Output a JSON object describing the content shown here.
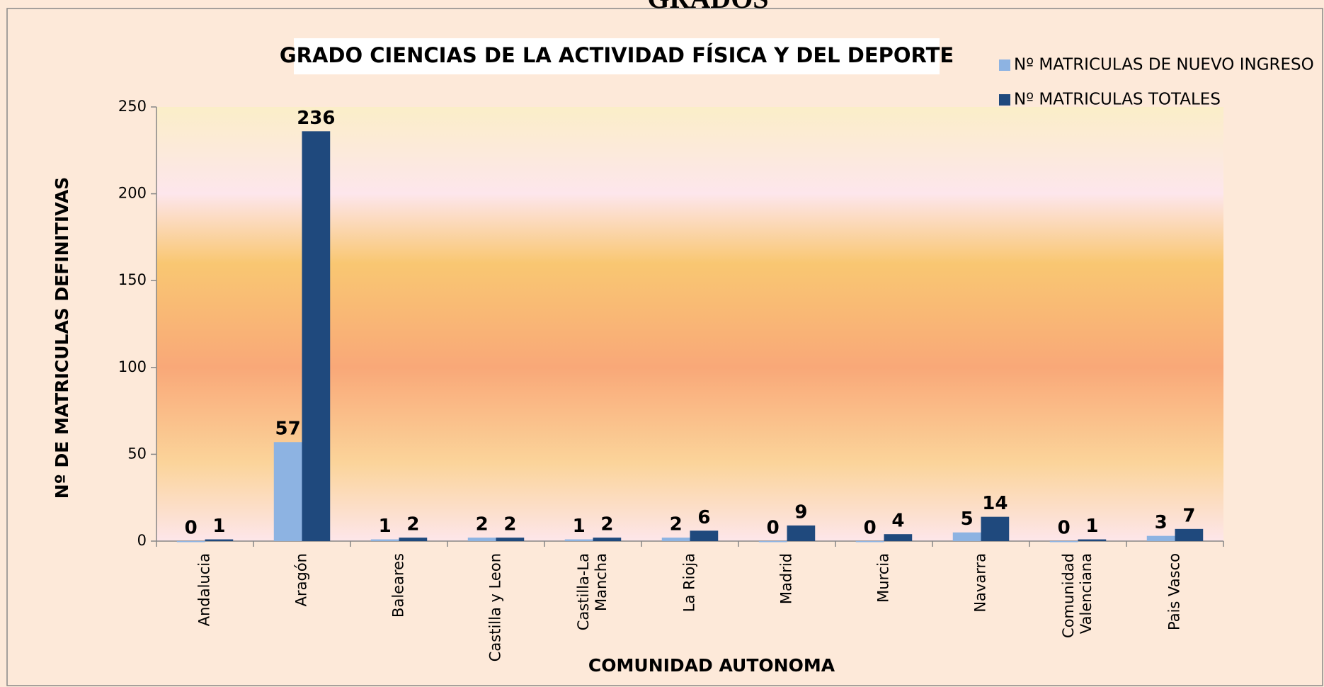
{
  "heading": "GRADOS",
  "chart_data": {
    "type": "bar",
    "title": "GRADO CIENCIAS DE LA ACTIVIDAD FÍSICA Y DEL DEPORTE",
    "x_label": "COMUNIDAD AUTONOMA",
    "y_label": "Nº DE MATRICULAS DEFINITIVAS",
    "categories": [
      "Andalucia",
      "Aragón",
      "Baleares",
      "Castilla y Leon",
      "Castilla-La\nMancha",
      "La Rioja",
      "Madrid",
      "Murcia",
      "Navarra",
      "Comunidad\nValenciana",
      "Pais Vasco"
    ],
    "series": [
      {
        "name": "Nº  MATRICULAS DE NUEVO INGRESO",
        "color": "#8db3e2",
        "label_color": "#95b3d7",
        "values": [
          0,
          57,
          1,
          2,
          1,
          2,
          0,
          0,
          5,
          0,
          3
        ]
      },
      {
        "name": "Nº MATRICULAS TOTALES",
        "color": "#1f497d",
        "label_color": "#1f497d",
        "values": [
          1,
          236,
          2,
          2,
          2,
          6,
          9,
          4,
          14,
          1,
          7
        ]
      }
    ],
    "ylim": [
      0,
      250
    ],
    "yticks": [
      0,
      50,
      100,
      150,
      200,
      250
    ],
    "legend": "top-right",
    "grid": false
  }
}
